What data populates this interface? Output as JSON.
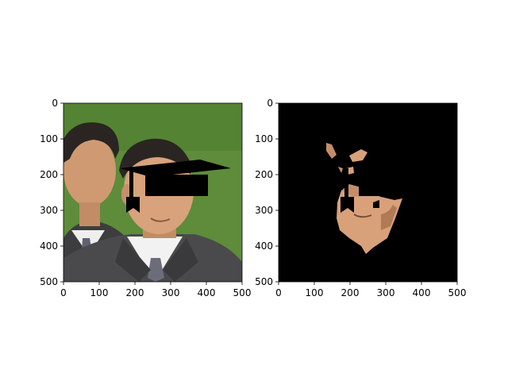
{
  "chart_data": [
    {
      "type": "image",
      "image_content": "photo of two men in suits on green background; the nearer man wears a black graduation cap drawn over his head",
      "xlim": [
        0,
        500
      ],
      "ylim": [
        500,
        0
      ],
      "x_ticks": [
        "0",
        "100",
        "200",
        "300",
        "400",
        "500"
      ],
      "y_ticks": [
        "0",
        "100",
        "200",
        "300",
        "400",
        "500"
      ]
    },
    {
      "type": "image",
      "image_content": "segmentation mask result: black background with only the nearer man's face skin visible, cap region blacked out",
      "xlim": [
        0,
        500
      ],
      "ylim": [
        500,
        0
      ],
      "x_ticks": [
        "0",
        "100",
        "200",
        "300",
        "400",
        "500"
      ],
      "y_ticks": [
        "0",
        "100",
        "200",
        "300",
        "400",
        "500"
      ]
    }
  ],
  "colors": {
    "grass": "#5e8c3a",
    "grass_dark": "#4a7a2c",
    "suit": "#4a4a4c",
    "suit_dark": "#333335",
    "skin": "#d7a27c",
    "skin_shadow": "#b07a55",
    "hair": "#2a2522",
    "shirt": "#f2f2f2",
    "tie": "#6b6e7a",
    "cap": "#000000",
    "mask_bg": "#000000"
  }
}
